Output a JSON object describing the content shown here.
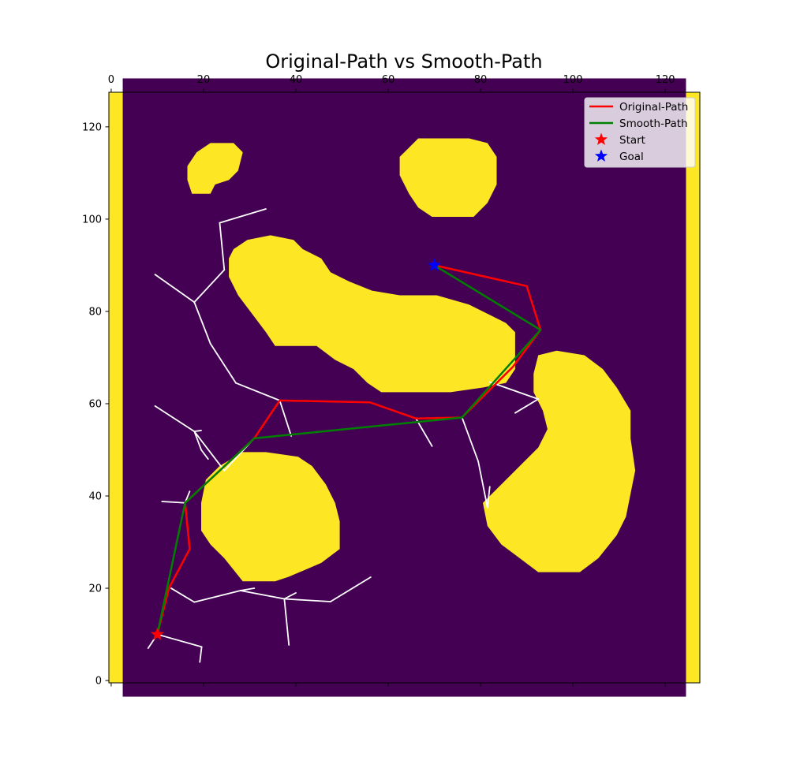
{
  "chart_data": {
    "type": "line",
    "title": "Original-Path vs Smooth-Path",
    "xlabel": "",
    "ylabel": "",
    "xlim": [
      -0.5,
      127.5
    ],
    "ylim": [
      127.5,
      -0.5
    ],
    "x_ticks": [
      0,
      20,
      40,
      60,
      80,
      100,
      120
    ],
    "y_ticks": [
      0,
      20,
      40,
      60,
      80,
      100,
      120
    ],
    "x_tick_labels": [
      "0",
      "20",
      "40",
      "60",
      "80",
      "100",
      "120"
    ],
    "y_tick_labels": [
      "0",
      "20",
      "40",
      "60",
      "80",
      "100",
      "120"
    ],
    "x_axis_position": "top",
    "grid": false,
    "legend_position": "top-right",
    "colors": {
      "free": "#440154",
      "obstacle": "#fde725",
      "tree": "#ffffff",
      "original": "#ff0000",
      "smooth": "#008000",
      "start": "#ff0000",
      "goal": "#0000ff"
    },
    "map": {
      "border_cells": 3,
      "obstacles": [
        [
          [
            28.5,
            21.5
          ],
          [
            35.5,
            21.5
          ],
          [
            38.5,
            22.5
          ],
          [
            45.5,
            25.5
          ],
          [
            49.5,
            28.5
          ],
          [
            49.5,
            34.5
          ],
          [
            48.5,
            38.5
          ],
          [
            46.5,
            42.5
          ],
          [
            43.5,
            46.5
          ],
          [
            40.5,
            48.5
          ],
          [
            33.5,
            49.5
          ],
          [
            28.5,
            49.5
          ],
          [
            23.5,
            46.5
          ],
          [
            20.5,
            43.5
          ],
          [
            19.5,
            38.5
          ],
          [
            19.5,
            32.5
          ],
          [
            21.5,
            29.5
          ],
          [
            24.5,
            26.5
          ]
        ],
        [
          [
            92.5,
            23.5
          ],
          [
            101.5,
            23.5
          ],
          [
            105.5,
            26.5
          ],
          [
            109.5,
            31.5
          ],
          [
            111.5,
            35.5
          ],
          [
            112.5,
            40.5
          ],
          [
            113.5,
            45.5
          ],
          [
            112.5,
            52.5
          ],
          [
            112.5,
            58.5
          ],
          [
            109.5,
            63.5
          ],
          [
            106.5,
            67.5
          ],
          [
            102.5,
            70.5
          ],
          [
            96.5,
            71.5
          ],
          [
            92.5,
            70.5
          ],
          [
            91.5,
            66.5
          ],
          [
            91.5,
            62.5
          ],
          [
            93.5,
            58.5
          ],
          [
            94.5,
            54.5
          ],
          [
            92.5,
            50.5
          ],
          [
            88.5,
            46.5
          ],
          [
            84.5,
            42.5
          ],
          [
            80.5,
            38.5
          ],
          [
            81.5,
            33.5
          ],
          [
            84.5,
            29.5
          ],
          [
            88.5,
            26.5
          ]
        ],
        [
          [
            58.5,
            62.5
          ],
          [
            73.5,
            62.5
          ],
          [
            80.5,
            63.5
          ],
          [
            85.5,
            64.5
          ],
          [
            87.5,
            67.5
          ],
          [
            87.5,
            75.5
          ],
          [
            85.5,
            77.5
          ],
          [
            81.5,
            79.5
          ],
          [
            77.5,
            81.5
          ],
          [
            70.5,
            83.5
          ],
          [
            62.5,
            83.5
          ],
          [
            56.5,
            84.5
          ],
          [
            51.5,
            86.5
          ],
          [
            47.5,
            88.5
          ],
          [
            45.5,
            91.5
          ],
          [
            41.5,
            93.5
          ],
          [
            39.5,
            95.5
          ],
          [
            34.5,
            96.5
          ],
          [
            29.5,
            95.5
          ],
          [
            26.5,
            93.5
          ],
          [
            25.5,
            91.5
          ],
          [
            25.5,
            87.5
          ],
          [
            27.5,
            83.5
          ],
          [
            30.5,
            79.5
          ],
          [
            33.5,
            75.5
          ],
          [
            35.5,
            72.5
          ],
          [
            44.5,
            72.5
          ],
          [
            48.5,
            69.5
          ],
          [
            52.5,
            67.5
          ],
          [
            55.5,
            64.5
          ]
        ],
        [
          [
            69.5,
            100.5
          ],
          [
            78.5,
            100.5
          ],
          [
            81.5,
            103.5
          ],
          [
            83.5,
            107.5
          ],
          [
            83.5,
            113.5
          ],
          [
            81.5,
            116.5
          ],
          [
            77.5,
            117.5
          ],
          [
            66.5,
            117.5
          ],
          [
            64.5,
            115.5
          ],
          [
            62.5,
            113.5
          ],
          [
            62.5,
            109.5
          ],
          [
            64.5,
            105.5
          ],
          [
            66.5,
            102.5
          ]
        ],
        [
          [
            17.5,
            105.5
          ],
          [
            21.5,
            105.5
          ],
          [
            22.5,
            107.5
          ],
          [
            25.5,
            108.5
          ],
          [
            27.5,
            110.5
          ],
          [
            28.5,
            114.5
          ],
          [
            26.5,
            116.5
          ],
          [
            21.5,
            116.5
          ],
          [
            18.5,
            114.5
          ],
          [
            16.5,
            111.5
          ],
          [
            16.5,
            108.5
          ]
        ]
      ]
    },
    "tree_edges": [
      [
        [
          10,
          10
        ],
        [
          19.6,
          7.3
        ]
      ],
      [
        [
          19.6,
          7.3
        ],
        [
          19.2,
          4.0
        ]
      ],
      [
        [
          10,
          10
        ],
        [
          8,
          7
        ]
      ],
      [
        [
          10,
          10
        ],
        [
          12.5,
          20
        ]
      ],
      [
        [
          13,
          20
        ],
        [
          18,
          17
        ]
      ],
      [
        [
          18,
          17
        ],
        [
          28,
          19.5
        ]
      ],
      [
        [
          28,
          19.5
        ],
        [
          31,
          20
        ]
      ],
      [
        [
          28,
          19.5
        ],
        [
          37.5,
          17.7
        ]
      ],
      [
        [
          37.5,
          17.7
        ],
        [
          38.5,
          7.7
        ]
      ],
      [
        [
          37.5,
          17.7
        ],
        [
          40,
          19
        ]
      ],
      [
        [
          37.5,
          17.7
        ],
        [
          47.5,
          17.1
        ]
      ],
      [
        [
          47.5,
          17.1
        ],
        [
          56.2,
          22.4
        ]
      ],
      [
        [
          16,
          38.5
        ],
        [
          11,
          38.8
        ]
      ],
      [
        [
          16,
          38.5
        ],
        [
          17,
          41
        ]
      ],
      [
        [
          31,
          52.5
        ],
        [
          24.5,
          45.5
        ]
      ],
      [
        [
          24.5,
          45.5
        ],
        [
          18,
          54
        ]
      ],
      [
        [
          18,
          54
        ],
        [
          9.5,
          59.5
        ]
      ],
      [
        [
          18,
          54
        ],
        [
          19.5,
          50
        ]
      ],
      [
        [
          19.5,
          50
        ],
        [
          21,
          48
        ]
      ],
      [
        [
          18,
          54
        ],
        [
          19.5,
          54.2
        ]
      ],
      [
        [
          36.5,
          60.7
        ],
        [
          39,
          53
        ]
      ],
      [
        [
          36.5,
          60.7
        ],
        [
          27,
          64.5
        ]
      ],
      [
        [
          27,
          64.5
        ],
        [
          21.5,
          73
        ]
      ],
      [
        [
          21.5,
          73
        ],
        [
          18,
          82
        ]
      ],
      [
        [
          18,
          82
        ],
        [
          9.5,
          88
        ]
      ],
      [
        [
          18,
          82
        ],
        [
          24.5,
          89
        ]
      ],
      [
        [
          24.5,
          89
        ],
        [
          23.5,
          99.2
        ]
      ],
      [
        [
          23.5,
          99.2
        ],
        [
          33.5,
          102.2
        ]
      ],
      [
        [
          66,
          56.8
        ],
        [
          69.5,
          50.8
        ]
      ],
      [
        [
          76,
          57
        ],
        [
          79.5,
          47.5
        ]
      ],
      [
        [
          79.5,
          47.5
        ],
        [
          81.5,
          37.5
        ]
      ],
      [
        [
          81.5,
          37.5
        ],
        [
          82,
          42
        ]
      ],
      [
        [
          82,
          64.7
        ],
        [
          92.5,
          61
        ]
      ],
      [
        [
          92.5,
          61
        ],
        [
          87.5,
          58
        ]
      ]
    ],
    "series": [
      {
        "name": "Original-Path",
        "color": "#ff0000",
        "x": [
          10,
          12.5,
          17,
          16,
          31,
          36.5,
          56,
          66,
          76,
          87,
          93,
          90,
          70
        ],
        "y": [
          10,
          20,
          28.5,
          38.5,
          52.5,
          60.7,
          60.3,
          56.8,
          57,
          68,
          76,
          85.5,
          90
        ]
      },
      {
        "name": "Smooth-Path",
        "color": "#008000",
        "x": [
          10,
          16,
          31,
          76,
          93,
          70
        ],
        "y": [
          10,
          38.5,
          52.5,
          57,
          76,
          90
        ]
      }
    ],
    "points": [
      {
        "name": "Start",
        "x": 10,
        "y": 10,
        "color": "#ff0000",
        "marker": "star"
      },
      {
        "name": "Goal",
        "x": 70,
        "y": 90,
        "color": "#0000ff",
        "marker": "star"
      }
    ],
    "legend": [
      "Original-Path",
      "Smooth-Path",
      "Start",
      "Goal"
    ]
  }
}
